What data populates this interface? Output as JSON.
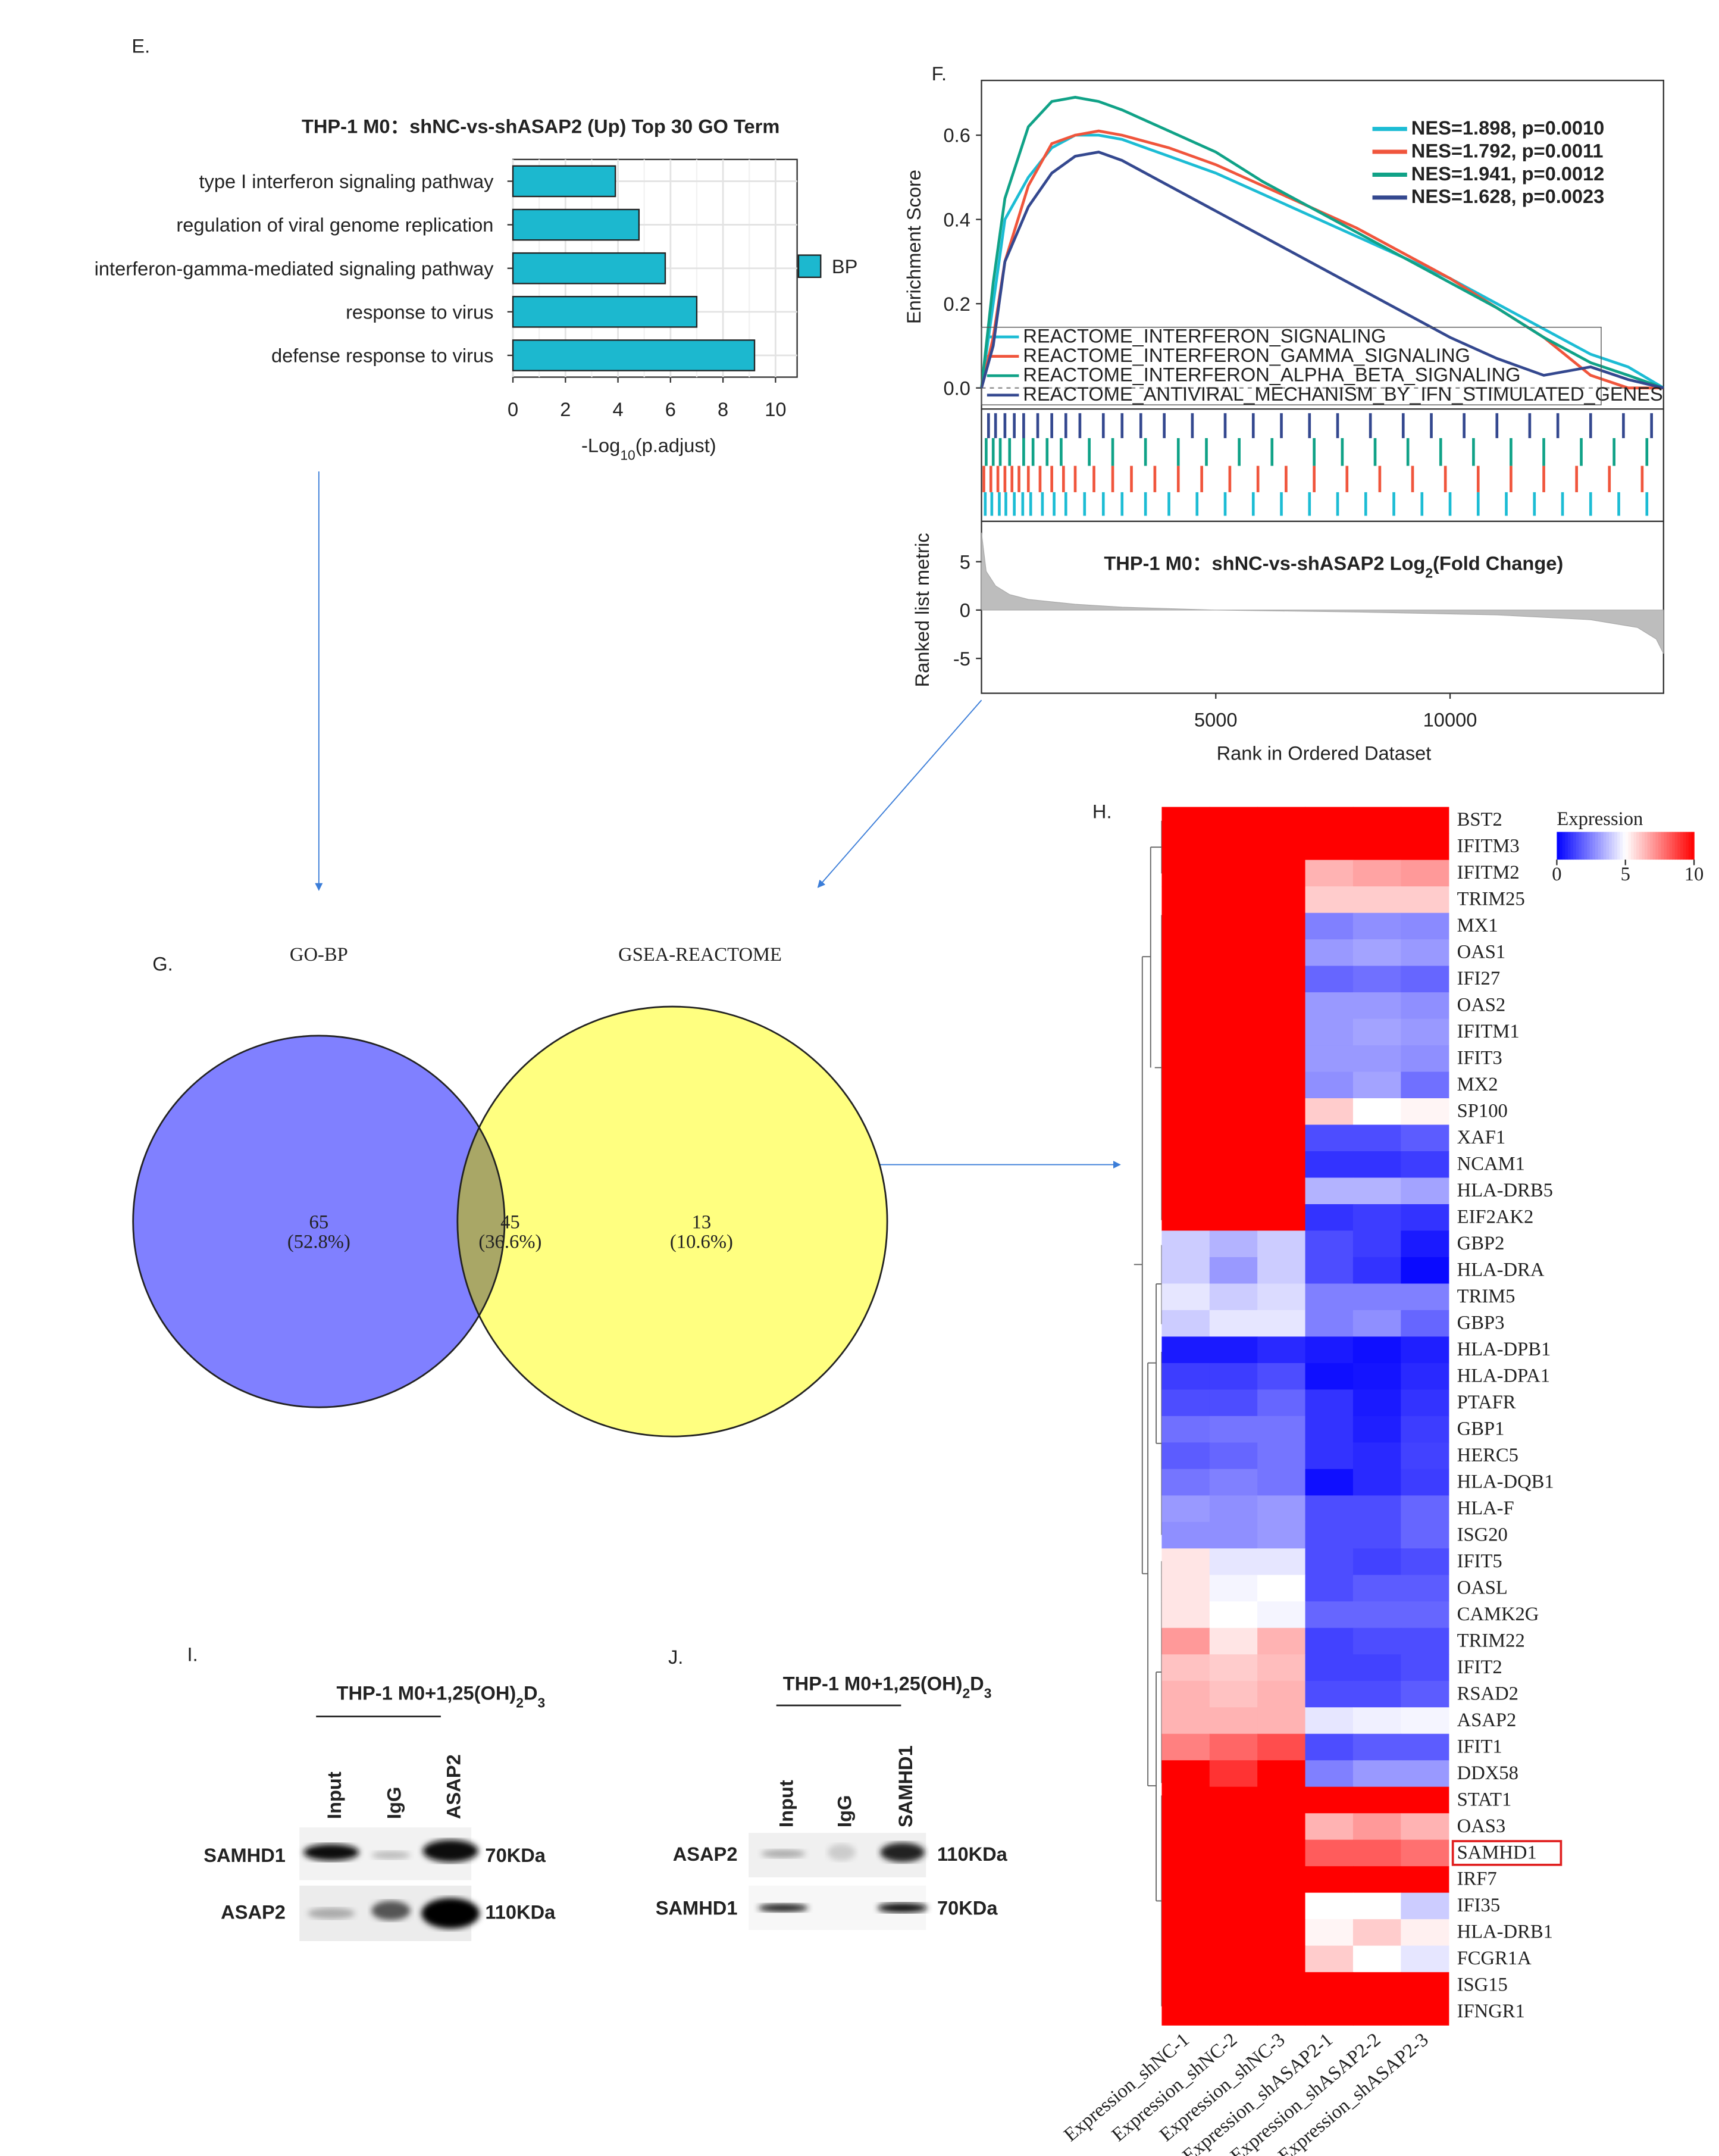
{
  "panels": {
    "E": "E.",
    "F": "F.",
    "G": "G.",
    "H": "H.",
    "I": "I.",
    "J": "J."
  },
  "chart_data": [
    {
      "type": "bar",
      "title": "THP-1 M0：shNC-vs-shASAP2 (Up) Top 30 GO Term",
      "categories": [
        "type I interferon signaling pathway",
        "regulation of viral genome replication",
        "interferon-gamma-mediated signaling pathway",
        "response to virus",
        "defense response to virus"
      ],
      "values": [
        3.9,
        4.8,
        5.8,
        7.0,
        9.2
      ],
      "color": "#1cb8cf",
      "xlim": [
        0,
        10.4
      ],
      "xticks": [
        0,
        2,
        4,
        6,
        8,
        10
      ],
      "grid": true,
      "xlabel": {
        "main": "-Log",
        "sub": "10",
        "rest": "(p.adjust)"
      },
      "legend": "BP"
    },
    {
      "type": "gsea",
      "ylabel": "Enrichment Score",
      "xlabel": "Rank in Ordered Dataset",
      "xlim": [
        0,
        14556
      ],
      "xticks": [
        5000,
        10000
      ],
      "ylim": [
        -0.05,
        0.73
      ],
      "yticks": [
        {
          "value": 0,
          "label": "0.0"
        },
        0.2,
        0.4,
        0.6
      ],
      "x": [
        0,
        250,
        500,
        1000,
        1500,
        2000,
        2500,
        3000,
        4000,
        5000,
        6000,
        7000,
        8000,
        9000,
        10000,
        11000,
        12000,
        13000,
        13800,
        14556
      ],
      "series": [
        {
          "name": "REACTOME_INTERFERON_SIGNALING",
          "nes_label": "NES=1.898, p=0.0010",
          "color": "#1cbcd4",
          "values": [
            0,
            0.2,
            0.4,
            0.5,
            0.57,
            0.6,
            0.6,
            0.59,
            0.55,
            0.51,
            0.46,
            0.41,
            0.36,
            0.31,
            0.26,
            0.2,
            0.14,
            0.08,
            0.05,
            0
          ],
          "hits": [
            80,
            220,
            380,
            520,
            700,
            880,
            1050,
            1300,
            1550,
            1800,
            2200,
            2600,
            3000,
            3500,
            4000,
            4600,
            5200,
            5800,
            6400,
            7000,
            7600,
            8200,
            8800,
            9400,
            10000,
            10600,
            11200,
            11800,
            12400,
            13000,
            13600,
            14200
          ]
        },
        {
          "name": "REACTOME_INTERFERON_GAMMA_SIGNALING",
          "nes_label": "NES=1.792, p=0.0011",
          "color": "#f0553c",
          "values": [
            0,
            0.12,
            0.3,
            0.48,
            0.58,
            0.6,
            0.61,
            0.6,
            0.57,
            0.53,
            0.48,
            0.43,
            0.38,
            0.32,
            0.26,
            0.19,
            0.12,
            0.03,
            0.0,
            0
          ],
          "hits": [
            50,
            200,
            350,
            500,
            650,
            800,
            1000,
            1250,
            1500,
            1750,
            2000,
            2400,
            2800,
            3200,
            3700,
            4200,
            4700,
            5300,
            5900,
            6500,
            7100,
            7800,
            8500,
            9200,
            9900,
            10600,
            11300,
            12000,
            12700,
            13400,
            14100
          ]
        },
        {
          "name": "REACTOME_INTERFERON_ALPHA_BETA_SIGNALING",
          "nes_label": "NES=1.941, p=0.0012",
          "color": "#10a287",
          "values": [
            0,
            0.25,
            0.45,
            0.62,
            0.68,
            0.69,
            0.68,
            0.66,
            0.61,
            0.56,
            0.49,
            0.43,
            0.37,
            0.31,
            0.25,
            0.19,
            0.12,
            0.06,
            0.03,
            0
          ],
          "hits": [
            100,
            250,
            400,
            600,
            900,
            1100,
            1400,
            1700,
            2300,
            2800,
            3500,
            4200,
            4800,
            5500,
            6200,
            7100,
            7700,
            8400,
            9100,
            9800,
            10500,
            11300,
            12000,
            12800,
            13500,
            14200
          ]
        },
        {
          "name": "REACTOME_ANTIVIRAL_MECHANISM_BY_IFN_STIMULATED_GENES",
          "nes_label": "NES=1.628, p=0.0023",
          "color": "#34488f",
          "values": [
            0,
            0.1,
            0.3,
            0.43,
            0.51,
            0.55,
            0.56,
            0.54,
            0.48,
            0.42,
            0.36,
            0.3,
            0.24,
            0.18,
            0.12,
            0.07,
            0.03,
            0.05,
            0.02,
            0
          ],
          "hits": [
            150,
            300,
            500,
            700,
            900,
            1200,
            1500,
            1800,
            2100,
            2600,
            3000,
            3400,
            3900,
            4500,
            5200,
            5800,
            6400,
            7000,
            7600,
            8300,
            9000,
            9600,
            10300,
            11000,
            11700,
            12300,
            13000,
            13700,
            14300
          ]
        }
      ],
      "metric": {
        "ylabel": "Ranked list metric",
        "title": {
          "main": "THP-1 M0：shNC-vs-shASAP2 Log",
          "sub": "2",
          "rest": "(Fold Change)"
        },
        "ylim": [
          -8.6,
          8.6
        ],
        "yticks": [
          5,
          0,
          -5
        ],
        "x": [
          0,
          100,
          300,
          600,
          1000,
          2000,
          3000,
          5000,
          8000,
          11000,
          13000,
          14000,
          14400,
          14556
        ],
        "values": [
          8,
          4,
          2.5,
          1.6,
          1.1,
          0.6,
          0.3,
          0,
          -0.2,
          -0.5,
          -1,
          -1.8,
          -3,
          -4.5
        ]
      }
    },
    {
      "type": "heatmap",
      "rows": [
        "BST2",
        "IFITM3",
        "IFITM2",
        "TRIM25",
        "MX1",
        "OAS1",
        "IFI27",
        "OAS2",
        "IFITM1",
        "IFIT3",
        "MX2",
        "SP100",
        "XAF1",
        "NCAM1",
        "HLA-DRB5",
        "EIF2AK2",
        "GBP2",
        "HLA-DRA",
        "TRIM5",
        "GBP3",
        "HLA-DPB1",
        "HLA-DPA1",
        "PTAFR",
        "GBP1",
        "HERC5",
        "HLA-DQB1",
        "HLA-F",
        "ISG20",
        "IFIT5",
        "OASL",
        "CAMK2G",
        "TRIM22",
        "IFIT2",
        "RSAD2",
        "ASAP2",
        "IFIT1",
        "DDX58",
        "STAT1",
        "OAS3",
        "SAMHD1",
        "IRF7",
        "IFI35",
        "HLA-DRB1",
        "FCGR1A",
        "ISG15",
        "IFNGR1"
      ],
      "columns": [
        "Expression_shNC-1",
        "Expression_shNC-2",
        "Expression_shNC-3",
        "Expression_shASAP2-1",
        "Expression_shASAP2-2",
        "Expression_shASAP2-3"
      ],
      "values": [
        [
          10,
          10,
          10,
          10,
          10,
          10
        ],
        [
          10,
          10,
          10,
          10,
          10,
          10
        ],
        [
          10,
          10,
          10,
          6.5,
          6.8,
          7
        ],
        [
          10,
          10,
          10,
          6,
          6,
          6
        ],
        [
          10,
          10,
          10,
          2.5,
          2.8,
          2.7
        ],
        [
          10,
          10,
          10,
          3,
          3.2,
          3
        ],
        [
          10,
          10,
          10,
          2,
          2.2,
          2
        ],
        [
          10,
          10,
          10,
          3,
          3,
          2.8
        ],
        [
          10,
          10,
          10,
          3,
          3.2,
          3
        ],
        [
          10,
          10,
          10,
          3,
          3,
          2.8
        ],
        [
          10,
          10,
          10,
          2.8,
          3.2,
          2.2
        ],
        [
          10,
          10,
          10,
          6,
          5,
          5.2
        ],
        [
          10,
          10,
          10,
          1.5,
          1.5,
          1.8
        ],
        [
          10,
          10,
          10,
          1,
          1,
          1.2
        ],
        [
          10,
          10,
          10,
          3.5,
          3.5,
          3.2
        ],
        [
          10,
          10,
          10,
          1,
          1.2,
          1
        ],
        [
          4,
          3.5,
          4,
          1.5,
          1.2,
          0.5
        ],
        [
          4,
          3,
          4,
          1.5,
          1,
          0.2
        ],
        [
          4.5,
          4,
          4.3,
          2.5,
          2.5,
          2.5
        ],
        [
          4,
          4.5,
          4.5,
          2.5,
          2.8,
          2
        ],
        [
          0.5,
          0.5,
          0.8,
          0.5,
          0.3,
          0.6
        ],
        [
          1.2,
          1.2,
          1.5,
          0.3,
          0.4,
          0.8
        ],
        [
          1.5,
          1.5,
          2,
          1,
          0.5,
          1
        ],
        [
          2.2,
          2.3,
          2.3,
          1,
          0.6,
          1.2
        ],
        [
          1.8,
          2,
          2.3,
          1,
          0.8,
          1.3
        ],
        [
          2.3,
          2.5,
          2.3,
          0.3,
          0.8,
          1.2
        ],
        [
          3,
          2.8,
          3,
          1.5,
          1.5,
          2
        ],
        [
          2.8,
          2.8,
          3,
          1.5,
          1.5,
          2
        ],
        [
          5.5,
          4.5,
          4.5,
          1.5,
          1.3,
          1.5
        ],
        [
          5.5,
          4.8,
          5,
          1.5,
          1.8,
          1.8
        ],
        [
          5.5,
          5,
          4.8,
          2,
          2,
          2
        ],
        [
          7,
          5.5,
          6.5,
          1.3,
          1.5,
          1.5
        ],
        [
          6.2,
          6,
          6.3,
          1.3,
          1.3,
          1.5
        ],
        [
          6.5,
          6.2,
          6.5,
          1.5,
          1.5,
          1.8
        ],
        [
          6.5,
          6.5,
          6.5,
          4.5,
          4.7,
          4.8
        ],
        [
          7.5,
          8,
          8.5,
          1.5,
          1.8,
          1.8
        ],
        [
          10,
          9,
          10,
          2.5,
          3,
          3
        ],
        [
          10,
          10,
          10,
          10,
          10,
          10
        ],
        [
          10,
          10,
          10,
          6.5,
          7,
          6.5
        ],
        [
          10,
          10,
          10,
          8.2,
          8.2,
          7.8
        ],
        [
          10,
          10,
          10,
          10,
          10,
          10
        ],
        [
          10,
          10,
          10,
          5,
          5,
          4
        ],
        [
          10,
          10,
          10,
          5.2,
          6,
          5.3
        ],
        [
          10,
          10,
          10,
          6,
          5,
          4.5
        ],
        [
          10,
          10,
          10,
          10,
          10,
          10
        ],
        [
          10,
          10,
          10,
          10,
          10,
          10
        ]
      ],
      "clim": [
        0,
        10
      ],
      "colors": [
        "#0000ff",
        "#ffffff",
        "#ff0000"
      ],
      "colorbar": {
        "title": "Expression",
        "ticks": [
          0,
          5,
          10
        ]
      },
      "highlight_row": 39
    }
  ],
  "venn": {
    "sets": [
      {
        "name": "GO-BP",
        "color": "#3434f0",
        "fill": "#8080ff"
      },
      {
        "name": "GSEA-REACTOME",
        "color": "#a09a20",
        "fill": "#ffff80"
      }
    ],
    "overlap_fill": "#a9a766",
    "regions": [
      {
        "count": 65,
        "label": "(52.8%)"
      },
      {
        "count": 45,
        "label": "(36.6%)"
      },
      {
        "count": 13,
        "label": "(10.6%)"
      }
    ]
  },
  "blots": [
    {
      "title": {
        "a": "THP-1 M0+1,25(OH)",
        "b": "2",
        "c": "D",
        "d": "3"
      },
      "lanes": [
        "Input",
        "IgG",
        "ASAP2"
      ],
      "rows": [
        {
          "protein": "SAMHD1",
          "size": "70KDa"
        },
        {
          "protein": "ASAP2",
          "size": "110KDa"
        }
      ]
    },
    {
      "title": {
        "a": "THP-1 M0+1,25(OH)",
        "b": "2",
        "c": "D",
        "d": "3"
      },
      "lanes": [
        "Input",
        "IgG",
        "SAMHD1"
      ],
      "rows": [
        {
          "protein": "ASAP2",
          "size": "110KDa"
        },
        {
          "protein": "SAMHD1",
          "size": "70KDa"
        }
      ]
    }
  ]
}
